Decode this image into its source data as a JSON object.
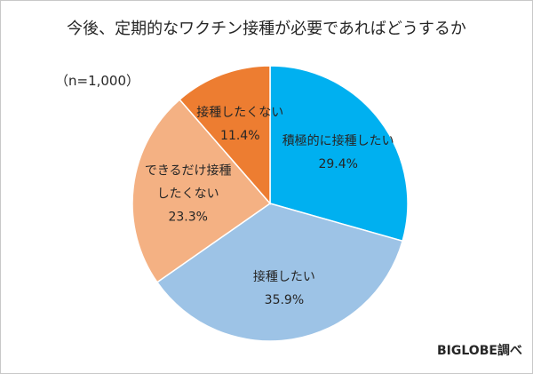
{
  "chart_data": {
    "type": "pie",
    "title": "今後、定期的なワクチン接種が必要であればどうするか",
    "sample_size": "（n=1,000）",
    "source": "BIGLOBE調べ",
    "slices": [
      {
        "label_lines": [
          "積極的に接種したい"
        ],
        "value": 29.4,
        "value_label": "29.4%",
        "color": "#00b0f0"
      },
      {
        "label_lines": [
          "接種したい"
        ],
        "value": 35.9,
        "value_label": "35.9%",
        "color": "#9dc3e6"
      },
      {
        "label_lines": [
          "できるだけ接種",
          "したくない"
        ],
        "value": 23.3,
        "value_label": "23.3%",
        "color": "#f4b183"
      },
      {
        "label_lines": [
          "接種したくない"
        ],
        "value": 11.4,
        "value_label": "11.4%",
        "color": "#ed7d31"
      }
    ]
  }
}
